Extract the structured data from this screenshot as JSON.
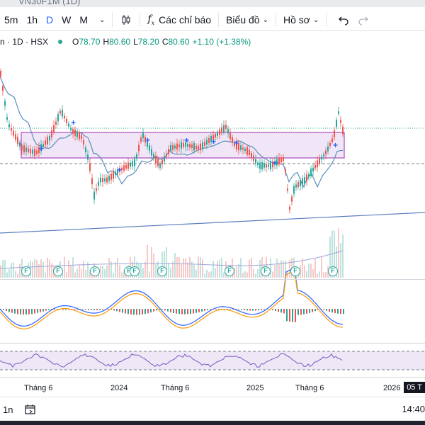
{
  "window": {
    "title": "VN30F1M (1D)"
  },
  "toolbar": {
    "intervals": [
      "5m",
      "1h",
      "D",
      "W",
      "M"
    ],
    "active_interval": "D",
    "indicators_label": "Các chỉ báo",
    "chart_type_label": "Biểu đồ",
    "profile_label": "Hồ sơ"
  },
  "legend": {
    "symbol": "n · 1D · HSX",
    "open_label": "O",
    "open": "78.70",
    "high_label": "H",
    "high": "80.60",
    "low_label": "L",
    "low": "78.20",
    "close_label": "C",
    "close": "80.60",
    "change": "+1.10 (+1.38%)"
  },
  "colors": {
    "up": "#26a69a",
    "down": "#ef5350",
    "ma": "#5b8fb9",
    "box_fill": "#f1e6f7",
    "box_border": "#9c27b0",
    "trendline": "#5b7fbf",
    "macd": "#2962ff",
    "signal": "#ff9800",
    "rsi": "#7e57c2"
  },
  "event_badge": "F",
  "time_axis": {
    "labels": [
      "Tháng 6",
      "2024",
      "Tháng 6",
      "2025",
      "Tháng 6",
      "2026"
    ],
    "current_date": "05 T"
  },
  "bottombar": {
    "range_label": "1n",
    "calendar_icon": "calendar-range-icon",
    "clock": "14:40"
  }
}
